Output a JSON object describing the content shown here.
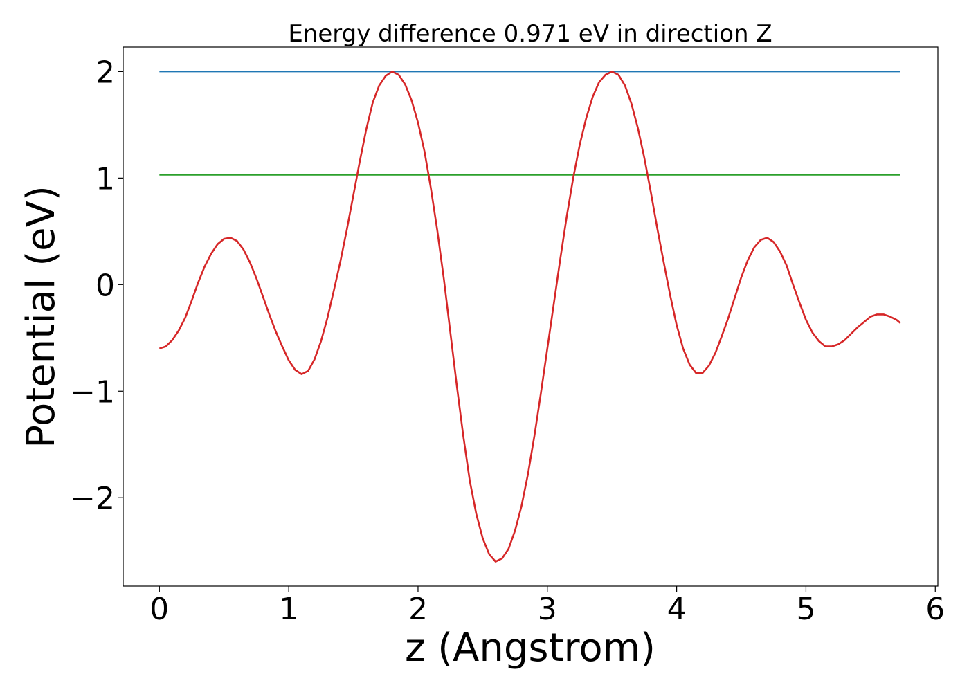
{
  "chart_data": {
    "type": "line",
    "title": "Energy difference 0.971 eV in direction Z",
    "xlabel": "z (Angstrom)",
    "ylabel": "Potential (eV)",
    "xlim": [
      -0.28,
      6.02
    ],
    "ylim": [
      -2.83,
      2.23
    ],
    "x_ticks": [
      0,
      1,
      2,
      3,
      4,
      5,
      6
    ],
    "x_tick_labels": [
      "0",
      "1",
      "2",
      "3",
      "4",
      "5",
      "6"
    ],
    "y_ticks": [
      -2,
      -1,
      0,
      1,
      2
    ],
    "y_tick_labels": [
      "−2",
      "−1",
      "0",
      "1",
      "2"
    ],
    "grid": false,
    "series": [
      {
        "color": "#1f77b4",
        "x": [
          0,
          5.73
        ],
        "values": [
          2.0,
          2.0
        ]
      },
      {
        "color": "#2ca02c",
        "x": [
          0,
          5.73
        ],
        "values": [
          1.03,
          1.03
        ]
      },
      {
        "color": "#d62728",
        "x": [
          0,
          0.05,
          0.1,
          0.15,
          0.2,
          0.25,
          0.3,
          0.35,
          0.4,
          0.45,
          0.5,
          0.55,
          0.6,
          0.65,
          0.7,
          0.75,
          0.8,
          0.85,
          0.9,
          0.95,
          1.0,
          1.05,
          1.1,
          1.15,
          1.2,
          1.25,
          1.3,
          1.35,
          1.4,
          1.45,
          1.5,
          1.55,
          1.6,
          1.65,
          1.7,
          1.75,
          1.8,
          1.85,
          1.9,
          1.95,
          2.0,
          2.05,
          2.1,
          2.15,
          2.2,
          2.25,
          2.3,
          2.35,
          2.4,
          2.45,
          2.5,
          2.55,
          2.6,
          2.65,
          2.7,
          2.75,
          2.8,
          2.85,
          2.9,
          2.95,
          3.0,
          3.05,
          3.1,
          3.15,
          3.2,
          3.25,
          3.3,
          3.35,
          3.4,
          3.45,
          3.5,
          3.55,
          3.6,
          3.65,
          3.7,
          3.75,
          3.8,
          3.85,
          3.9,
          3.95,
          4.0,
          4.05,
          4.1,
          4.15,
          4.2,
          4.25,
          4.3,
          4.35,
          4.4,
          4.45,
          4.5,
          4.55,
          4.6,
          4.65,
          4.7,
          4.75,
          4.8,
          4.85,
          4.9,
          4.95,
          5.0,
          5.05,
          5.1,
          5.15,
          5.2,
          5.25,
          5.3,
          5.35,
          5.4,
          5.45,
          5.5,
          5.55,
          5.6,
          5.65,
          5.7,
          5.73
        ],
        "values": [
          -0.6,
          -0.58,
          -0.52,
          -0.43,
          -0.31,
          -0.15,
          0.02,
          0.17,
          0.29,
          0.38,
          0.43,
          0.44,
          0.41,
          0.33,
          0.21,
          0.06,
          -0.11,
          -0.28,
          -0.44,
          -0.58,
          -0.71,
          -0.8,
          -0.84,
          -0.81,
          -0.7,
          -0.53,
          -0.31,
          -0.05,
          0.22,
          0.52,
          0.84,
          1.16,
          1.46,
          1.71,
          1.87,
          1.96,
          2.0,
          1.97,
          1.88,
          1.73,
          1.52,
          1.25,
          0.9,
          0.5,
          0.05,
          -0.45,
          -0.95,
          -1.42,
          -1.84,
          -2.15,
          -2.38,
          -2.53,
          -2.6,
          -2.57,
          -2.48,
          -2.31,
          -2.08,
          -1.78,
          -1.42,
          -1.02,
          -0.6,
          -0.18,
          0.24,
          0.64,
          1.0,
          1.31,
          1.56,
          1.76,
          1.9,
          1.97,
          2.0,
          1.97,
          1.87,
          1.7,
          1.47,
          1.19,
          0.87,
          0.53,
          0.21,
          -0.1,
          -0.38,
          -0.6,
          -0.75,
          -0.83,
          -0.83,
          -0.76,
          -0.64,
          -0.48,
          -0.31,
          -0.12,
          0.07,
          0.23,
          0.35,
          0.42,
          0.44,
          0.4,
          0.31,
          0.18,
          0.0,
          -0.17,
          -0.33,
          -0.45,
          -0.53,
          -0.58,
          -0.58,
          -0.56,
          -0.52,
          -0.46,
          -0.4,
          -0.35,
          -0.3,
          -0.28,
          -0.28,
          -0.3,
          -0.33,
          -0.36
        ]
      }
    ]
  }
}
